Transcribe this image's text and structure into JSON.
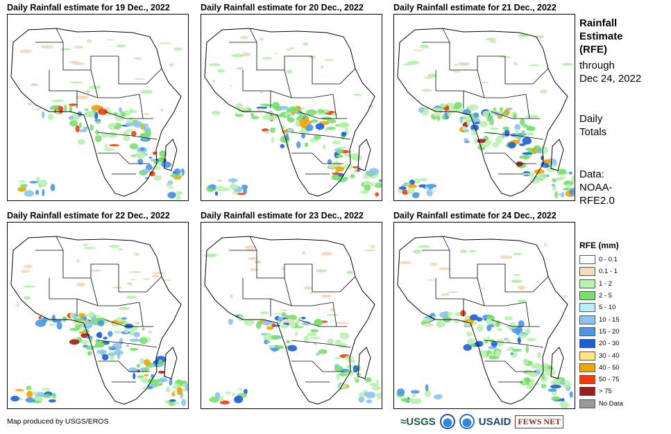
{
  "panels": [
    {
      "title": "Daily Rainfall estimate for 19 Dec., 2022",
      "intensity": 0.7
    },
    {
      "title": "Daily Rainfall estimate for 20 Dec., 2022",
      "intensity": 0.85
    },
    {
      "title": "Daily Rainfall estimate for 21 Dec., 2022",
      "intensity": 1.0
    },
    {
      "title": "Daily Rainfall estimate for 22 Dec., 2022",
      "intensity": 0.95
    },
    {
      "title": "Daily Rainfall estimate for 23 Dec., 2022",
      "intensity": 0.6
    },
    {
      "title": "Daily Rainfall estimate for 24 Dec., 2022",
      "intensity": 0.75
    }
  ],
  "side": {
    "title_line1": "Rainfall",
    "title_line2": "Estimate",
    "title_line3": "(RFE)",
    "through": "through",
    "date": "Dec 24, 2022",
    "daily1": "Daily",
    "daily2": "Totals",
    "data1": "Data:",
    "data2": "NOAA-",
    "data3": "RFE2.0"
  },
  "legend": {
    "title": "RFE (mm)",
    "items": [
      {
        "label": "0 - 0.1",
        "color": "#ffffff"
      },
      {
        "label": "0.1 - 1",
        "color": "#f2dcc0"
      },
      {
        "label": "1 - 2",
        "color": "#b9f2b0"
      },
      {
        "label": "2 - 5",
        "color": "#77e06d"
      },
      {
        "label": "5 - 10",
        "color": "#b4f0f5"
      },
      {
        "label": "10 - 15",
        "color": "#8cc3f0"
      },
      {
        "label": "15 - 20",
        "color": "#4a96e8"
      },
      {
        "label": "20 - 30",
        "color": "#1d5fd6"
      },
      {
        "label": "30 - 40",
        "color": "#ffe58a"
      },
      {
        "label": "40 - 50",
        "color": "#f5a300"
      },
      {
        "label": "50 - 75",
        "color": "#ee3b0f"
      },
      {
        "label": "> 75",
        "color": "#a31919"
      },
      {
        "label": "No Data",
        "color": "#999999"
      }
    ]
  },
  "footer": {
    "credit": "Map produced by USGS/EROS",
    "usgs": "≈USGS",
    "usaid": "USAID",
    "fews": "FEWS NET"
  }
}
